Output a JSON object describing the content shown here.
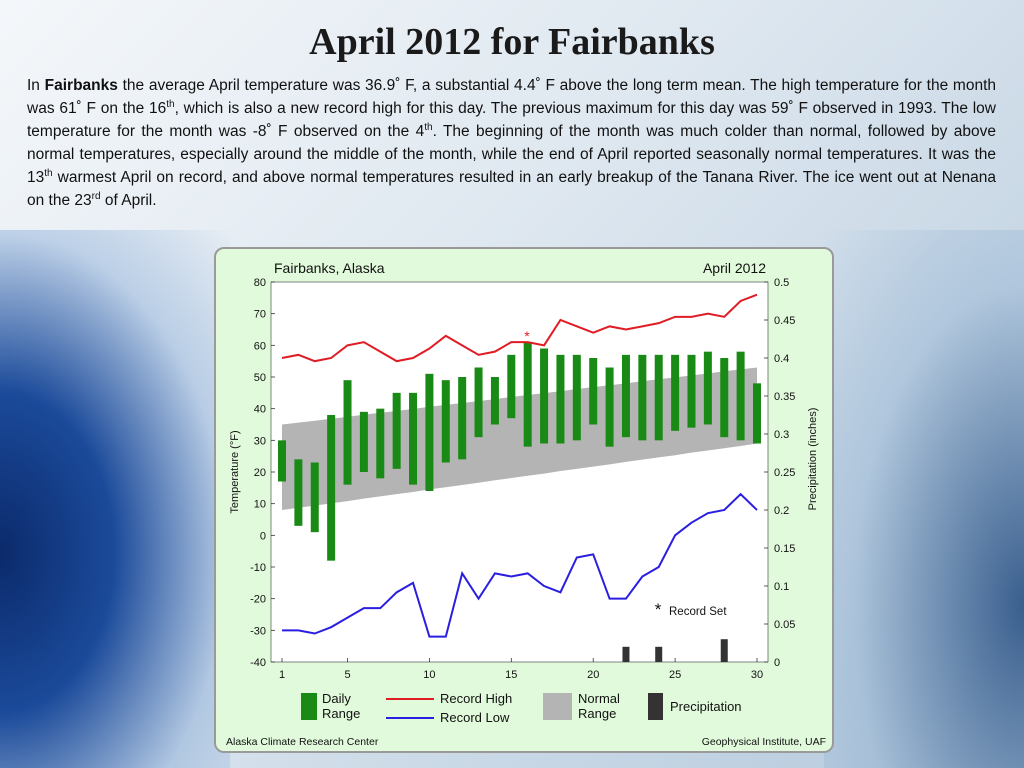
{
  "slide": {
    "title": "April 2012 for Fairbanks",
    "p1": "In ",
    "p_bold": "Fairbanks",
    "p2": " the average April temperature was 36.9˚ F, a substantial 4.4˚ F above the long term mean. The high temperature for the month was 61˚ F on the 16",
    "p_sup1": "th",
    "p3": ", which is also a new record high for this day. The previous maximum for this day was 59˚ F observed in 1993. The low temperature for the month was -8˚ F observed on the 4",
    "p_sup2": "th",
    "p4": ". The beginning of the month was much colder than normal, followed by above normal temperatures, especially around the middle of the month, while the end of April reported seasonally normal temperatures. It was the 13",
    "p_sup3": "th",
    "p5": " warmest April on record, and above normal temperatures resulted in an early breakup of the Tanana River. The ice went out at Nenana on the 23",
    "p_sup4": "rd",
    "p6": " of April."
  },
  "chart_data": {
    "type": "bar",
    "title": "Fairbanks, Alaska",
    "subtitle": "April 2012",
    "xlabel": "",
    "ylabel": "Temperature (°F)",
    "y2label": "Precipitation (inches)",
    "x_ticks": [
      1,
      5,
      10,
      15,
      20,
      25,
      30
    ],
    "y_ticks": [
      80,
      70,
      60,
      50,
      40,
      30,
      20,
      10,
      0,
      -10,
      -20,
      -30,
      -40
    ],
    "y2_ticks": [
      "0.5",
      "0.45",
      "0.4",
      "0.35",
      "0.3",
      "0.25",
      "0.2",
      "0.15",
      "0.1",
      "0.05",
      "0"
    ],
    "xlim": [
      1,
      30
    ],
    "ylim": [
      -40,
      80
    ],
    "y2lim": [
      0,
      0.5
    ],
    "days": [
      1,
      2,
      3,
      4,
      5,
      6,
      7,
      8,
      9,
      10,
      11,
      12,
      13,
      14,
      15,
      16,
      17,
      18,
      19,
      20,
      21,
      22,
      23,
      24,
      25,
      26,
      27,
      28,
      29,
      30
    ],
    "daily_range": [
      [
        17,
        30
      ],
      [
        3,
        24
      ],
      [
        1,
        23
      ],
      [
        -8,
        38
      ],
      [
        16,
        49
      ],
      [
        20,
        39
      ],
      [
        18,
        40
      ],
      [
        21,
        45
      ],
      [
        16,
        45
      ],
      [
        14,
        51
      ],
      [
        23,
        49
      ],
      [
        24,
        50
      ],
      [
        31,
        53
      ],
      [
        35,
        50
      ],
      [
        37,
        57
      ],
      [
        28,
        61
      ],
      [
        29,
        59
      ],
      [
        29,
        57
      ],
      [
        30,
        57
      ],
      [
        35,
        56
      ],
      [
        28,
        53
      ],
      [
        31,
        57
      ],
      [
        30,
        57
      ],
      [
        30,
        57
      ],
      [
        33,
        57
      ],
      [
        34,
        57
      ],
      [
        35,
        58
      ],
      [
        31,
        56
      ],
      [
        30,
        58
      ],
      [
        29,
        48
      ]
    ],
    "normal_low": [
      8,
      8.7,
      9.4,
      10.1,
      10.8,
      11.6,
      12.3,
      13,
      13.7,
      14.5,
      15.2,
      15.9,
      16.6,
      17.4,
      18.1,
      18.8,
      19.5,
      20.3,
      21,
      21.7,
      22.4,
      23.2,
      23.9,
      24.6,
      25.3,
      26.1,
      26.8,
      27.5,
      28.2,
      29
    ],
    "normal_high": [
      35,
      35.6,
      36.2,
      36.8,
      37.4,
      38.1,
      38.7,
      39.3,
      39.9,
      40.6,
      41.2,
      41.8,
      42.4,
      43,
      43.7,
      44.3,
      44.9,
      45.5,
      46.2,
      46.8,
      47.4,
      48,
      48.7,
      49.3,
      49.9,
      50.5,
      51.1,
      51.8,
      52.4,
      53
    ],
    "record_high": [
      56,
      57,
      55,
      56,
      60,
      61,
      58,
      55,
      56,
      59,
      63,
      60,
      57,
      58,
      61,
      61,
      60,
      68,
      66,
      64,
      66,
      65,
      66,
      67,
      69,
      69,
      70,
      69,
      74,
      76
    ],
    "record_low": [
      -30,
      -30,
      -31,
      -29,
      -26,
      -23,
      -23,
      -18,
      -15,
      -32,
      -32,
      -12,
      -20,
      -12,
      -13,
      -12,
      -16,
      -18,
      -7,
      -6,
      -20,
      -20,
      -13,
      -10,
      0,
      4,
      7,
      8,
      13,
      8
    ],
    "precipitation": [
      0,
      0,
      0,
      0,
      0,
      0,
      0,
      0,
      0,
      0,
      0,
      0,
      0,
      0,
      0,
      0,
      0,
      0,
      0,
      0,
      0,
      0.02,
      0,
      0.02,
      0,
      0,
      0,
      0.03,
      0,
      0
    ],
    "record_set_day": 16,
    "record_marker": "*",
    "record_note": "Record Set",
    "legend": [
      {
        "label": "Daily\nRange",
        "color": "#1a8a16",
        "kind": "bar"
      },
      {
        "label": "Record High",
        "color": "#e01c24",
        "kind": "line"
      },
      {
        "label": "Record Low",
        "color": "#2a1ee0",
        "kind": "line"
      },
      {
        "label": "Normal\nRange",
        "color": "#b4b4b4",
        "kind": "bar"
      },
      {
        "label": "Precipitation",
        "color": "#333333",
        "kind": "bar"
      }
    ],
    "legend_position": "bottom",
    "grid": false,
    "footer_left": "Alaska Climate Research Center",
    "footer_right": "Geophysical Institute, UAF",
    "colors": {
      "daily": "#1a8a16",
      "normal": "#b4b4b4",
      "record_high": "#e01c24",
      "record_low": "#2a1ee0",
      "precip": "#333333",
      "background": "#e2fadc",
      "plot": "#ffffff"
    }
  }
}
